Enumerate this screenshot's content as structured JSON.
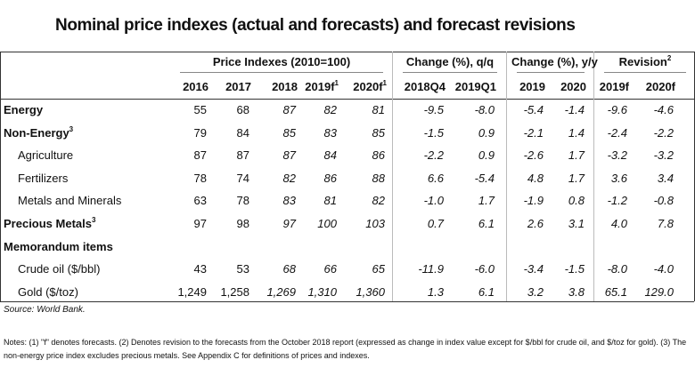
{
  "title": "Nominal price indexes (actual and forecasts) and forecast revisions",
  "groups": [
    {
      "label": "Price Indexes (2010=100)"
    },
    {
      "label": "Change (%), q/q"
    },
    {
      "label": "Change (%), y/y"
    },
    {
      "label": "Revision",
      "note": "2"
    }
  ],
  "columns": [
    {
      "label": "2016"
    },
    {
      "label": "2017"
    },
    {
      "label": "2018"
    },
    {
      "label": "2019f",
      "note": "1"
    },
    {
      "label": "2020f",
      "note": "1"
    },
    {
      "label": "2018Q4"
    },
    {
      "label": "2019Q1"
    },
    {
      "label": "2019"
    },
    {
      "label": "2020"
    },
    {
      "label": "2019f"
    },
    {
      "label": "2020f"
    }
  ],
  "rows": [
    {
      "label": "Energy",
      "values": [
        "55",
        "68",
        "87",
        "82",
        "81",
        "-9.5",
        "-8.0",
        "-5.4",
        "-1.4",
        "-9.6",
        "-4.6"
      ]
    },
    {
      "label": "Non-Energy",
      "note": "3",
      "values": [
        "79",
        "84",
        "85",
        "83",
        "85",
        "-1.5",
        "0.9",
        "-2.1",
        "1.4",
        "-2.4",
        "-2.2"
      ]
    },
    {
      "label": "Agriculture",
      "values": [
        "87",
        "87",
        "87",
        "84",
        "86",
        "-2.2",
        "0.9",
        "-2.6",
        "1.7",
        "-3.2",
        "-3.2"
      ]
    },
    {
      "label": "Fertilizers",
      "values": [
        "78",
        "74",
        "82",
        "86",
        "88",
        "6.6",
        "-5.4",
        "4.8",
        "1.7",
        "3.6",
        "3.4"
      ]
    },
    {
      "label": "Metals and Minerals",
      "values": [
        "63",
        "78",
        "83",
        "81",
        "82",
        "-1.0",
        "1.7",
        "-1.9",
        "0.8",
        "-1.2",
        "-0.8"
      ]
    },
    {
      "label": "Precious Metals",
      "note": "3",
      "values": [
        "97",
        "98",
        "97",
        "100",
        "103",
        "0.7",
        "6.1",
        "2.6",
        "3.1",
        "4.0",
        "7.8"
      ]
    },
    {
      "label": "Memorandum items"
    },
    {
      "label": "Crude oil ($/bbl)",
      "values": [
        "43",
        "53",
        "68",
        "66",
        "65",
        "-11.9",
        "-6.0",
        "-3.4",
        "-1.5",
        "-8.0",
        "-4.0"
      ]
    },
    {
      "label": "Gold ($/toz)",
      "values": [
        "1,249",
        "1,258",
        "1,269",
        "1,310",
        "1,360",
        "1.3",
        "6.1",
        "3.2",
        "3.8",
        "65.1",
        "129.0"
      ]
    }
  ],
  "source": "Source: World Bank.",
  "notes": "Notes: (1) \"f\" denotes forecasts. (2) Denotes revision to the forecasts from the October 2018 report (expressed as change in index value except for $/bbl for crude oil, and $/toz for gold). (3) The non-energy price index excludes precious metals. See Appendix C for definitions of prices and indexes."
}
